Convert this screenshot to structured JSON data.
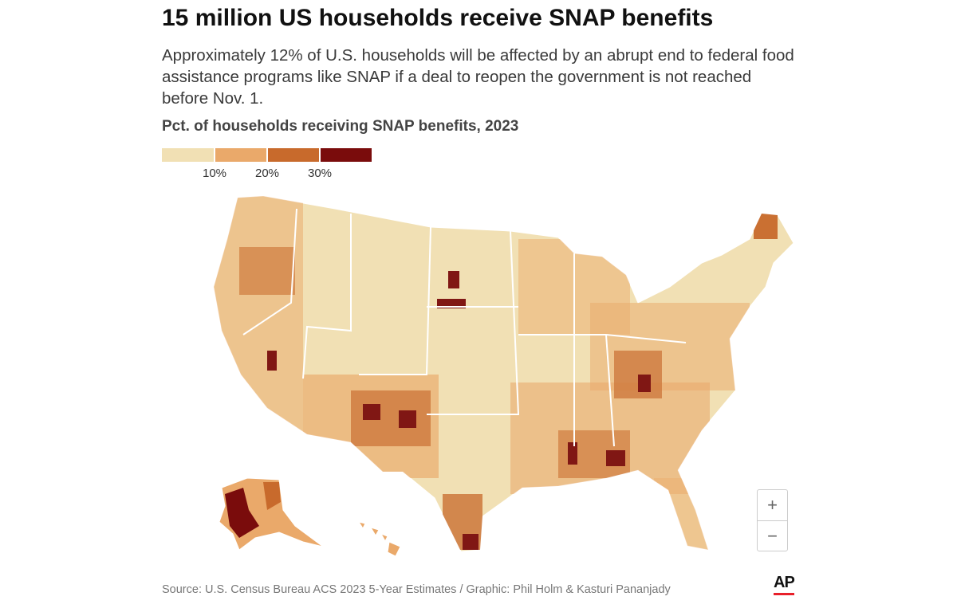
{
  "header": {
    "title": "15 million US households receive SNAP benefits",
    "subtitle": "Approximately 12% of U.S. households will be affected by an abrupt end to federal food assistance programs like SNAP if a deal to reopen the government is not reached before Nov. 1."
  },
  "legend": {
    "title": "Pct. of households receiving SNAP benefits, 2023",
    "colors": [
      "#f1e0b4",
      "#eaa96a",
      "#c86a2c",
      "#7a0c0c"
    ],
    "ticks": [
      {
        "value": 10,
        "label": "10%"
      },
      {
        "value": 20,
        "label": "20%"
      },
      {
        "value": 30,
        "label": "30%"
      }
    ]
  },
  "zoom": {
    "in": "+",
    "out": "−"
  },
  "footer": {
    "source": "Source: U.S. Census Bureau ACS 2023 5-Year Estimates / Graphic: Phil Holm & Kasturi Pananjady",
    "logo": "AP"
  }
}
